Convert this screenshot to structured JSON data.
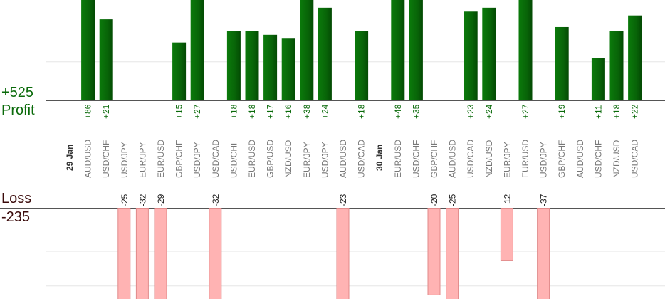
{
  "chart_data": {
    "type": "bar",
    "total_profit": "+525",
    "profit_label": "Profit",
    "loss_label": "Loss",
    "total_loss": "-235",
    "colors": {
      "profit": "#0a6a0a",
      "profit_dark": "#034a03",
      "loss": "#ffb3b3",
      "loss_border": "#e08a8a",
      "grid": "#e6e6e6",
      "axis": "#555555",
      "profit_text": "#0a6a0a",
      "loss_text": "#3a0a0a"
    },
    "trades": [
      {
        "date": "29 Jan"
      },
      {
        "pair": "AUD/USD",
        "profit": 86,
        "profit_label": "+86"
      },
      {
        "pair": "USD/CHF",
        "profit": 21,
        "profit_label": "+21"
      },
      {
        "pair": "USD/JPY",
        "loss": -25,
        "loss_label": "-25"
      },
      {
        "pair": "EUR/JPY",
        "loss": -32,
        "loss_label": "-32"
      },
      {
        "pair": "EUR/USD",
        "loss": -29,
        "loss_label": "-29"
      },
      {
        "pair": "GBP/CHF",
        "profit": 15,
        "profit_label": "+15"
      },
      {
        "pair": "USD/JPY",
        "profit": 27,
        "profit_label": "+27"
      },
      {
        "pair": "USD/CAD",
        "loss": -32,
        "loss_label": "-32"
      },
      {
        "pair": "USD/CHF",
        "profit": 18,
        "profit_label": "+18"
      },
      {
        "pair": "EUR/USD",
        "profit": 18,
        "profit_label": "+18"
      },
      {
        "pair": "GBP/USD",
        "profit": 17,
        "profit_label": "+17"
      },
      {
        "pair": "NZD/USD",
        "profit": 16,
        "profit_label": "+16"
      },
      {
        "pair": "EUR/JPY",
        "profit": 38,
        "profit_label": "+38"
      },
      {
        "pair": "USD/JPY",
        "profit": 24,
        "profit_label": "+24"
      },
      {
        "pair": "AUD/USD",
        "loss": -23,
        "loss_label": "-23"
      },
      {
        "pair": "USD/CAD",
        "profit": 18,
        "profit_label": "+18"
      },
      {
        "date": "30 Jan"
      },
      {
        "pair": "EUR/USD",
        "profit": 48,
        "profit_label": "+48"
      },
      {
        "pair": "USD/CHF",
        "profit": 35,
        "profit_label": "+35"
      },
      {
        "pair": "GBP/CHF",
        "loss": -20,
        "loss_label": "-20"
      },
      {
        "pair": "AUD/USD",
        "loss": -25,
        "loss_label": "-25"
      },
      {
        "pair": "USD/CAD",
        "profit": 23,
        "profit_label": "+23"
      },
      {
        "pair": "NZD/USD",
        "profit": 24,
        "profit_label": "+24"
      },
      {
        "pair": "EUR/JPY",
        "loss": -12,
        "loss_label": "-12"
      },
      {
        "pair": "EUR/USD",
        "profit": 27,
        "profit_label": "+27"
      },
      {
        "pair": "USD/JPY",
        "loss": -37,
        "loss_label": "-37"
      },
      {
        "pair": "GBP/CHF",
        "profit": 19,
        "profit_label": "+19"
      },
      {
        "pair": "AUD/USD"
      },
      {
        "pair": "USD/CHF",
        "profit": 11,
        "profit_label": "+11"
      },
      {
        "pair": "NZD/USD",
        "profit": 18,
        "profit_label": "+18"
      },
      {
        "pair": "USD/CAD",
        "profit": 22,
        "profit_label": "+22"
      }
    ],
    "profit_axis": {
      "min": 0,
      "max": 26,
      "gridlines": [
        10,
        20
      ]
    },
    "loss_axis": {
      "min": 0,
      "max": 21,
      "gridlines": [
        10,
        18
      ]
    },
    "grid": true
  }
}
